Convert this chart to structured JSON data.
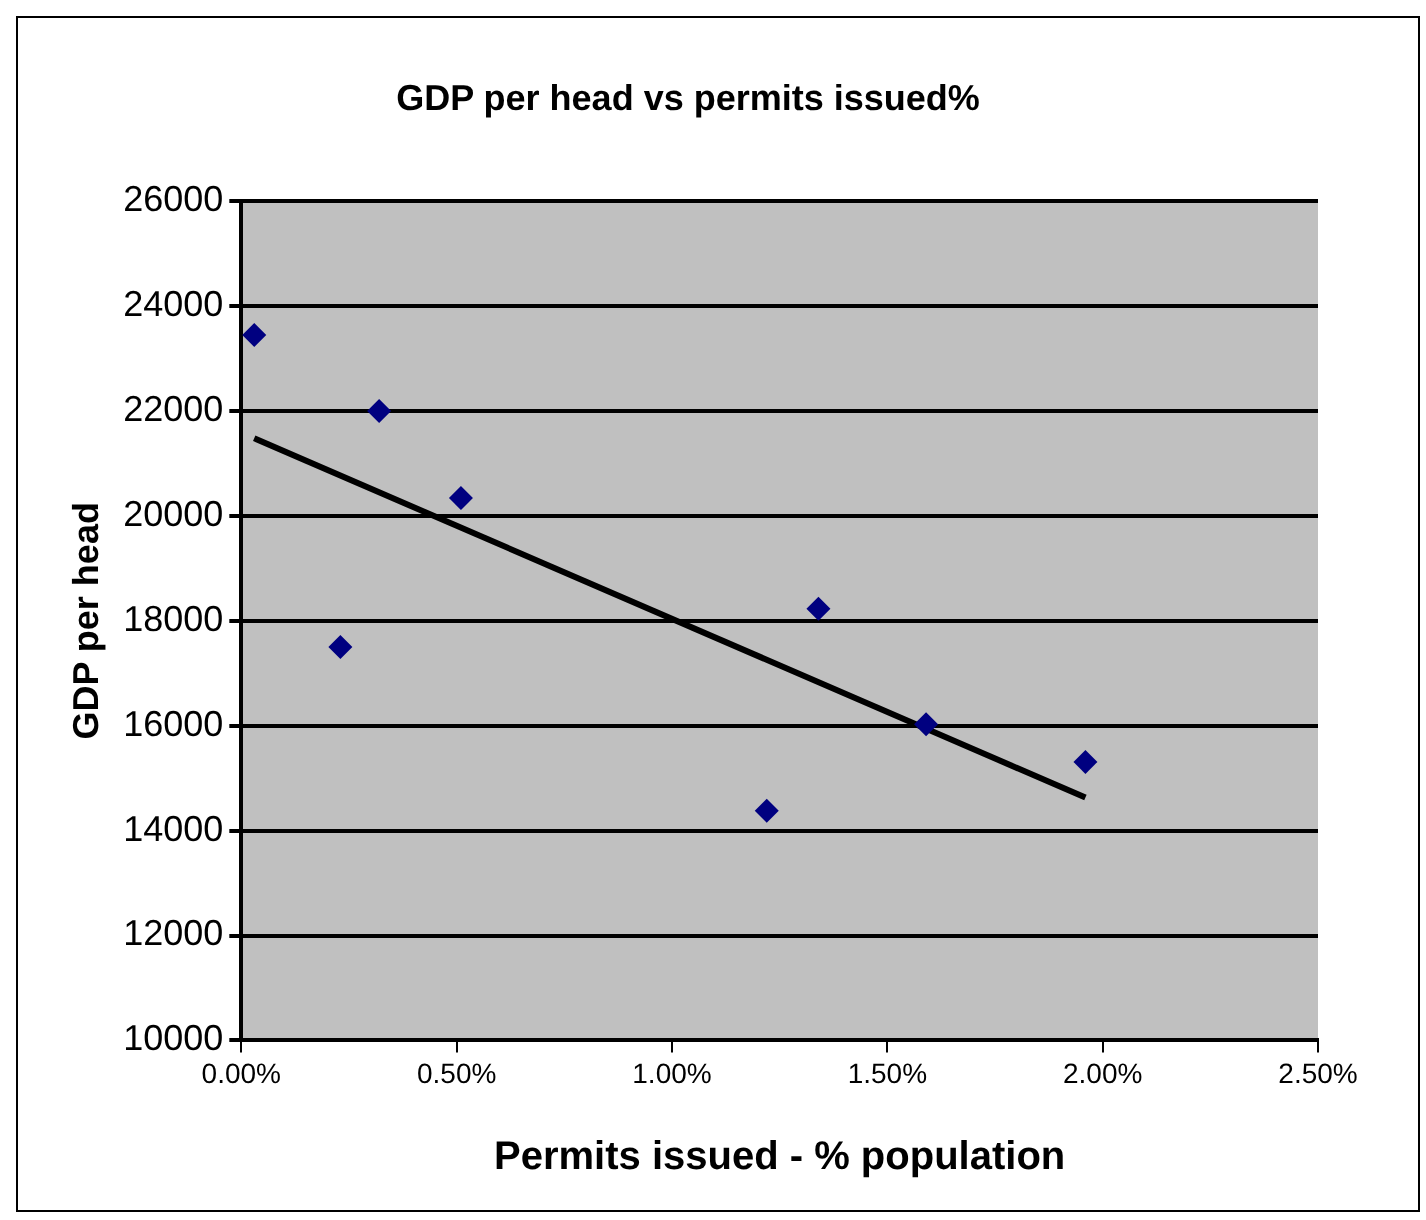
{
  "chart_data": {
    "type": "scatter",
    "title": "GDP per head vs permits issued%",
    "xlabel": "Permits issued - % population",
    "ylabel": "GDP per head",
    "xlim": [
      0,
      2.5
    ],
    "xticks": [
      {
        "value": 0,
        "label": "0.00%"
      },
      {
        "value": 0.5,
        "label": "0.50%"
      },
      {
        "value": 1,
        "label": "1.00%"
      },
      {
        "value": 1.5,
        "label": "1.50%"
      },
      {
        "value": 2,
        "label": "2.00%"
      },
      {
        "value": 2.5,
        "label": "2.50%"
      }
    ],
    "ylim": [
      10000,
      26000
    ],
    "yticks": [
      10000,
      12000,
      14000,
      16000,
      18000,
      20000,
      22000,
      24000,
      26000
    ],
    "grid": "y",
    "legend": false,
    "marker": "diamond",
    "series": [
      {
        "type": "scatter",
        "color": "#000080",
        "x": [
          0.03,
          0.23,
          0.32,
          0.51,
          1.22,
          1.34,
          1.59,
          1.96
        ],
        "values": [
          23450,
          17500,
          22000,
          20340,
          14380,
          18230,
          16030,
          15310
        ]
      },
      {
        "type": "line",
        "color": "#000000",
        "x": [
          0.03,
          1.96
        ],
        "values": [
          21480,
          14630
        ],
        "marker": "none",
        "line_style": "solid"
      }
    ]
  }
}
